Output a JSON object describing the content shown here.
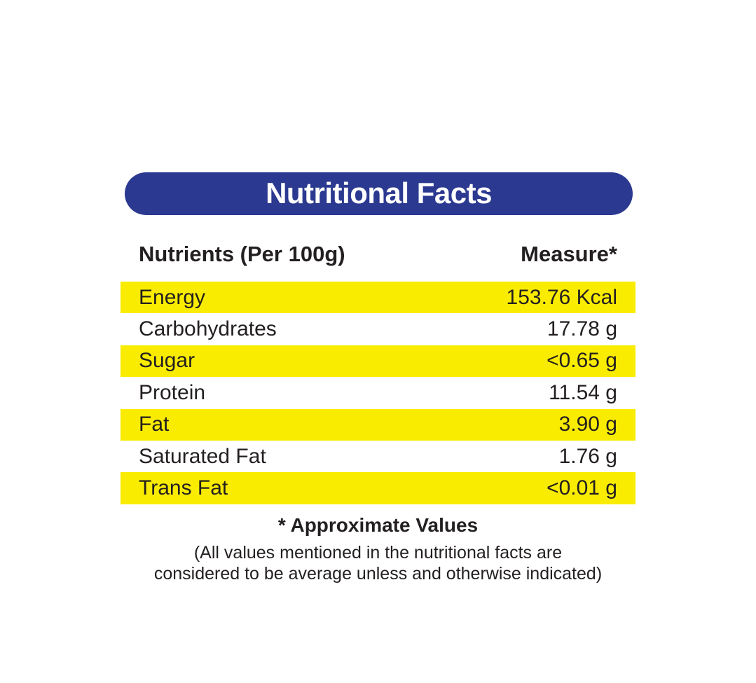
{
  "label": {
    "title": "Nutritional Facts",
    "columns": {
      "nutrients": "Nutrients (Per 100g)",
      "measure": "Measure*"
    },
    "rows": [
      {
        "name": "Energy",
        "value": "153.76 Kcal",
        "highlighted": true
      },
      {
        "name": "Carbohydrates",
        "value": "17.78 g",
        "highlighted": false
      },
      {
        "name": "Sugar",
        "value": "<0.65 g",
        "highlighted": true
      },
      {
        "name": "Protein",
        "value": "11.54 g",
        "highlighted": false
      },
      {
        "name": "Fat",
        "value": "3.90 g",
        "highlighted": true
      },
      {
        "name": "Saturated Fat",
        "value": "1.76 g",
        "highlighted": false
      },
      {
        "name": "Trans Fat",
        "value": "<0.01 g",
        "highlighted": true
      }
    ],
    "footnote": {
      "title": "* Approximate Values",
      "line1": "(All values mentioned in the nutritional facts are",
      "line2": "considered to be average unless and otherwise indicated)"
    },
    "colors": {
      "banner_bg": "#2B3990",
      "banner_text": "#FFFFFF",
      "row_highlight": "#FAEC00",
      "text": "#231F20",
      "background": "#FFFFFF"
    }
  }
}
